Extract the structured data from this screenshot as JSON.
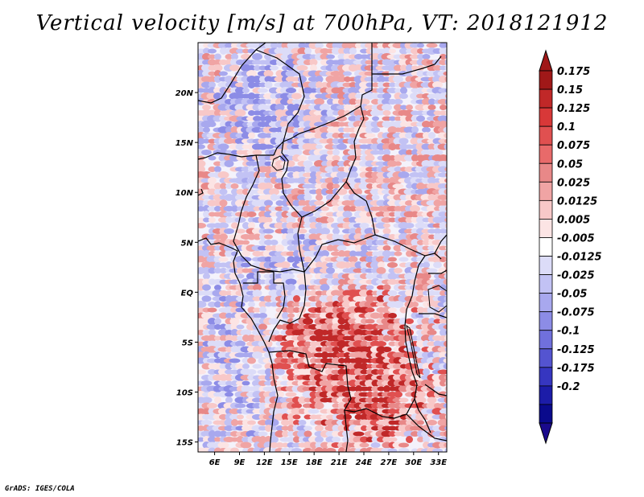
{
  "title": "Vertical velocity [m/s] at 700hPa, VT: 2018121912",
  "credit": "GrADS: IGES/COLA",
  "map": {
    "lon_range": [
      4,
      34
    ],
    "lat_range": [
      -16,
      25
    ],
    "x_tick_labels": [
      "6E",
      "9E",
      "12E",
      "15E",
      "18E",
      "21E",
      "24E",
      "27E",
      "30E",
      "33E"
    ],
    "x_tick_values": [
      6,
      9,
      12,
      15,
      18,
      21,
      24,
      27,
      30,
      33
    ],
    "y_tick_labels": [
      "20N",
      "15N",
      "10N",
      "5N",
      "EQ",
      "5S",
      "10S",
      "15S"
    ],
    "y_tick_values": [
      20,
      15,
      10,
      5,
      0,
      -5,
      -10,
      -15
    ]
  },
  "colorbar": {
    "labels": [
      "0.175",
      "0.15",
      "0.125",
      "0.1",
      "0.075",
      "0.05",
      "0.025",
      "0.0125",
      "0.005",
      "-0.005",
      "-0.0125",
      "-0.025",
      "-0.05",
      "-0.075",
      "-0.1",
      "-0.125",
      "-0.175",
      "-0.2"
    ],
    "colors": [
      "#a01818",
      "#c02828",
      "#d83838",
      "#e05050",
      "#e86a6a",
      "#e88888",
      "#f0a4a4",
      "#f8c8c8",
      "#fce4e4",
      "#ffffff",
      "#dcdcf8",
      "#c2c2f4",
      "#a8a8ee",
      "#8c8ce6",
      "#7070dc",
      "#5454d0",
      "#3636c0",
      "#1c1ca8",
      "#0a0a8c"
    ],
    "top_arrow_color": "#a01818",
    "bottom_arrow_color": "#1a0a8c"
  }
}
